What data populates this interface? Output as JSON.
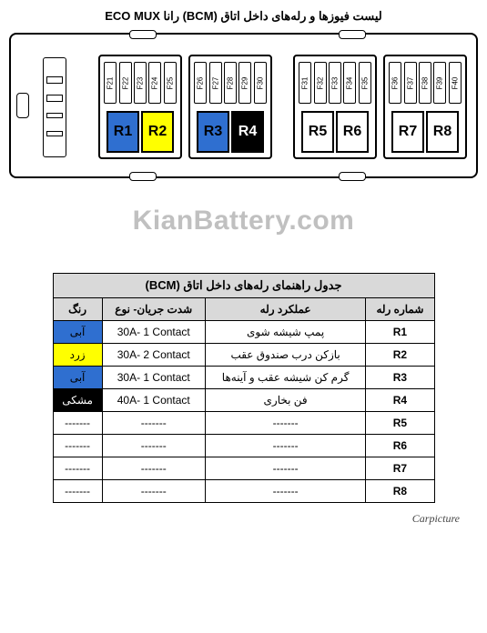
{
  "title_main": "لیست فیوزها و رله‌های داخل اتاق (BCM) رانا ECO MUX",
  "watermark": "KianBattery.com",
  "footer": "Carpicture",
  "colors": {
    "blue": "#2f6fd0",
    "yellow": "#ffff00",
    "black": "#000000",
    "white": "#ffffff",
    "header_bg": "#d9d9d9",
    "dark_text_on_black": "#ffffff"
  },
  "fuse_blocks": [
    {
      "fuses": [
        "F21",
        "F22",
        "F23",
        "F24",
        "F25"
      ],
      "relays": [
        {
          "label": "R1",
          "fill": "#2f6fd0",
          "text": "#000000"
        },
        {
          "label": "R2",
          "fill": "#ffff00",
          "text": "#000000"
        }
      ]
    },
    {
      "fuses": [
        "F26",
        "F27",
        "F28",
        "F29",
        "F30"
      ],
      "relays": [
        {
          "label": "R3",
          "fill": "#2f6fd0",
          "text": "#000000"
        },
        {
          "label": "R4",
          "fill": "#000000",
          "text": "#ffffff"
        }
      ]
    },
    {
      "fuses": [
        "F31",
        "F32",
        "F33",
        "F34",
        "F35"
      ],
      "relays": [
        {
          "label": "R5",
          "fill": "#ffffff",
          "text": "#000000"
        },
        {
          "label": "R6",
          "fill": "#ffffff",
          "text": "#000000"
        }
      ]
    },
    {
      "fuses": [
        "F36",
        "F37",
        "F38",
        "F39",
        "F40"
      ],
      "relays": [
        {
          "label": "R7",
          "fill": "#ffffff",
          "text": "#000000"
        },
        {
          "label": "R8",
          "fill": "#ffffff",
          "text": "#000000"
        }
      ]
    }
  ],
  "table": {
    "caption": "جدول راهنمای رله‌های داخل اتاق (BCM)",
    "columns": [
      "شماره رله",
      "عملكرد رله",
      "شدت جريان- نوع",
      "رنگ"
    ],
    "rows": [
      {
        "num": "R1",
        "func": "پمپ شيشه شوی",
        "cur": "30A- 1 Contact",
        "color_label": "آبی",
        "color_fill": "#2f6fd0",
        "color_text": "#000000"
      },
      {
        "num": "R2",
        "func": "بازكن درب صندوق عقب",
        "cur": "30A- 2 Contact",
        "color_label": "زرد",
        "color_fill": "#ffff00",
        "color_text": "#000000"
      },
      {
        "num": "R3",
        "func": "گرم كن شيشه عقب و آينه‌ها",
        "cur": "30A- 1 Contact",
        "color_label": "آبی",
        "color_fill": "#2f6fd0",
        "color_text": "#000000"
      },
      {
        "num": "R4",
        "func": "فن بخاری",
        "cur": "40A- 1 Contact",
        "color_label": "مشكی",
        "color_fill": "#000000",
        "color_text": "#ffffff"
      },
      {
        "num": "R5",
        "func": "-------",
        "cur": "-------",
        "color_label": "-------",
        "color_fill": "#ffffff",
        "color_text": "#000000"
      },
      {
        "num": "R6",
        "func": "-------",
        "cur": "-------",
        "color_label": "-------",
        "color_fill": "#ffffff",
        "color_text": "#000000"
      },
      {
        "num": "R7",
        "func": "-------",
        "cur": "-------",
        "color_label": "-------",
        "color_fill": "#ffffff",
        "color_text": "#000000"
      },
      {
        "num": "R8",
        "func": "-------",
        "cur": "-------",
        "color_label": "-------",
        "color_fill": "#ffffff",
        "color_text": "#000000"
      }
    ]
  }
}
